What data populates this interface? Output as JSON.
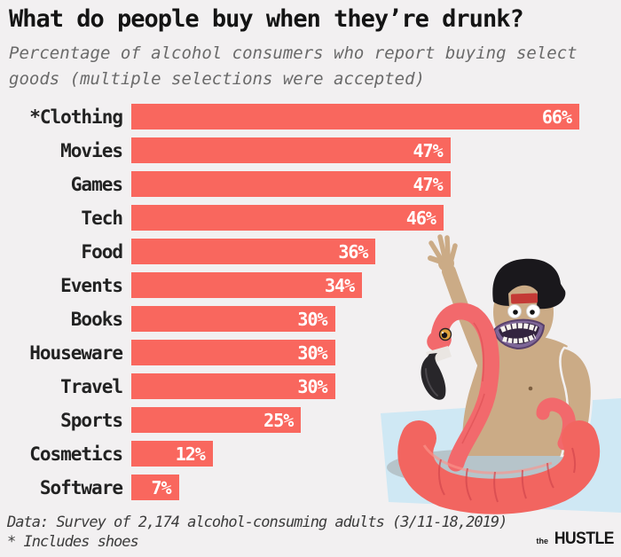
{
  "header": {
    "title": "What do people buy when they’re drunk?",
    "subtitle_lines": [
      "Percentage of alcohol consumers who report buying select",
      "goods (multiple selections were accepted)"
    ]
  },
  "chart_data": {
    "type": "bar",
    "orientation": "horizontal",
    "title": "What do people buy when they’re drunk?",
    "categories": [
      "*Clothing",
      "Movies",
      "Games",
      "Tech",
      "Food",
      "Events",
      "Books",
      "Houseware",
      "Travel",
      "Sports",
      "Cosmetics",
      "Software"
    ],
    "values": [
      66,
      47,
      47,
      46,
      36,
      34,
      30,
      30,
      30,
      25,
      12,
      7
    ],
    "value_suffix": "%",
    "xlim": [
      0,
      66
    ],
    "grid": false,
    "legend": "none",
    "bar_color": "#f9675e",
    "value_label_color": "#ffffff"
  },
  "footer": {
    "source_line": "Data: Survey of 2,174 alcohol-consuming adults (3/11-18,2019)",
    "note_line": "* Includes shoes"
  },
  "logo": {
    "prefix": "the",
    "name": "HUSTLE"
  },
  "illustration": {
    "description": "man wearing backwards cap, waving, sitting in a flamingo pool float on a light blue towel"
  },
  "colors": {
    "background": "#f2f0f1",
    "bar": "#f9675e",
    "title": "#141414",
    "subtitle": "#6a6a6a",
    "label": "#222222",
    "value": "#ffffff",
    "footer": "#3c3c3c",
    "skin": "#cbab86",
    "flamingo": "#f2696c",
    "flamingo_shade": "#d84a50",
    "cap": "#1a181c",
    "cap_strap": "#c43a36",
    "towel": "#cfe8f4",
    "shadow": "#a2a6a8",
    "mouth_lip": "#7e6697",
    "mouth_inner": "#33243f",
    "beak": "#28262a",
    "flamingo_eye": "#dfa13b"
  }
}
